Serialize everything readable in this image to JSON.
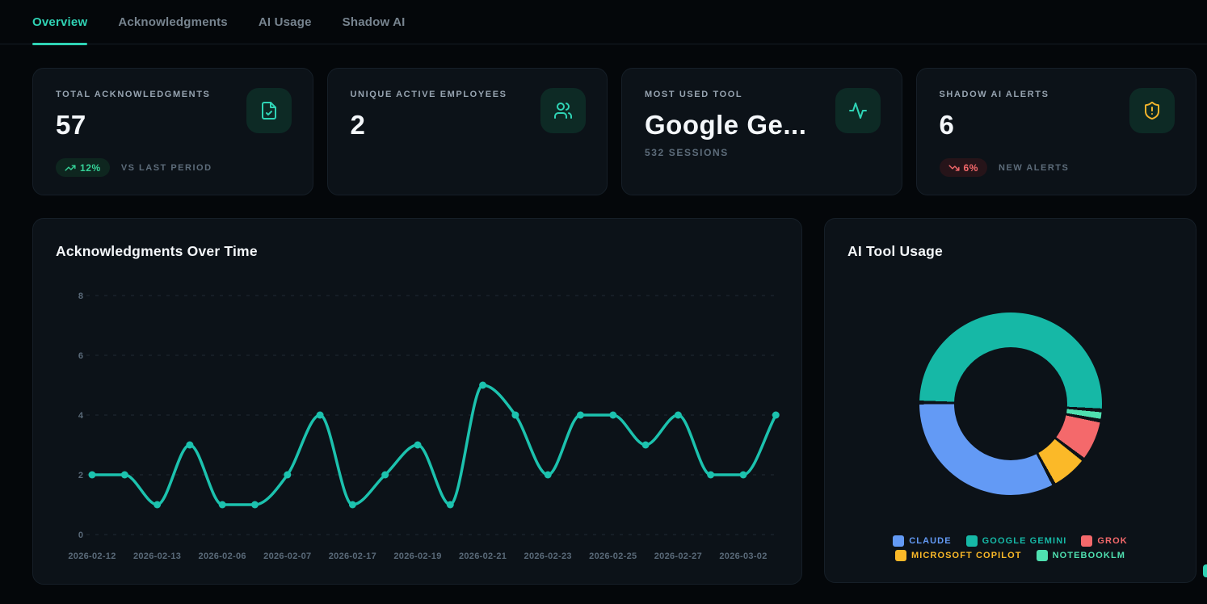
{
  "tabs": [
    {
      "label": "Overview",
      "active": true
    },
    {
      "label": "Acknowledgments",
      "active": false
    },
    {
      "label": "AI Usage",
      "active": false
    },
    {
      "label": "Shadow AI",
      "active": false
    }
  ],
  "stat_cards": [
    {
      "label": "TOTAL ACKNOWLEDGMENTS",
      "value": "57",
      "icon": "file-check-icon",
      "badge": {
        "direction": "up",
        "text": "12%"
      },
      "suffix": "VS LAST PERIOD"
    },
    {
      "label": "UNIQUE ACTIVE EMPLOYEES",
      "value": "2",
      "icon": "users-icon"
    },
    {
      "label": "MOST USED TOOL",
      "value": "Google Ge...",
      "subtext": "532 SESSIONS",
      "icon": "activity-icon"
    },
    {
      "label": "SHADOW AI ALERTS",
      "value": "6",
      "icon": "shield-alert-icon",
      "badge": {
        "direction": "down",
        "text": "6%"
      },
      "suffix": "NEW ALERTS"
    }
  ],
  "chart_data": [
    {
      "type": "line",
      "title": "Acknowledgments Over Time",
      "x_labels": [
        "2026-02-12",
        "2026-02-13",
        "2026-02-06",
        "2026-02-07",
        "2026-02-17",
        "2026-02-19",
        "2026-02-21",
        "2026-02-23",
        "2026-02-25",
        "2026-02-27",
        "2026-03-02"
      ],
      "x_label_every": 2,
      "values": [
        2,
        2,
        1,
        3,
        1,
        1,
        2,
        4,
        1,
        2,
        3,
        1,
        5,
        4,
        2,
        4,
        4,
        3,
        4,
        2,
        2,
        4
      ],
      "yticks": [
        0,
        2,
        4,
        6,
        8
      ],
      "ylim": [
        0,
        8
      ],
      "grid": "dashed-horizontal",
      "line_color": "#1cc2ae",
      "point_color": "#1cc2ae"
    },
    {
      "type": "pie",
      "title": "AI Tool Usage",
      "donut": true,
      "rotation_deg": 272,
      "slices": [
        {
          "name": "GOOGLE GEMINI",
          "share_pct": 52.0,
          "color": "#16b8a6"
        },
        {
          "name": "NOTEBOOKLM",
          "share_pct": 1.2,
          "color": "#4fe0b0"
        },
        {
          "name": "GROK",
          "share_pct": 7.0,
          "color": "#f4696b"
        },
        {
          "name": "MICROSOFT COPILOT",
          "share_pct": 6.3,
          "color": "#fbb928"
        },
        {
          "name": "CLAUDE",
          "share_pct": 33.5,
          "color": "#639af5"
        }
      ],
      "legend_rows": [
        [
          {
            "label": "CLAUDE",
            "color": "#639af5"
          },
          {
            "label": "GOOGLE GEMINI",
            "color": "#16b8a6"
          },
          {
            "label": "GROK",
            "color": "#f4696b"
          }
        ],
        [
          {
            "label": "MICROSOFT COPILOT",
            "color": "#fbb928"
          },
          {
            "label": "NOTEBOOKLM",
            "color": "#4fe0b0"
          }
        ]
      ],
      "legend_position": "bottom"
    }
  ],
  "colors": {
    "accent": "#2fd3b5",
    "positive": "#35d398",
    "negative": "#f4696b",
    "warning": "#f2b32c",
    "page_bg": "#04070a",
    "card_bg": "#0c1218"
  }
}
